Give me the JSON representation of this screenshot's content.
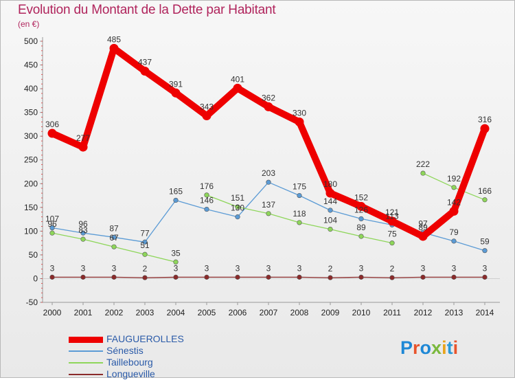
{
  "title": "Evolution du Montant de la Dette par Habitant",
  "unit": "(en €)",
  "logo": {
    "letters": [
      "P",
      "r",
      "o",
      "x",
      "i",
      "t",
      "i"
    ],
    "colors": [
      "#1e88d6",
      "#e8542c",
      "#1e88d6",
      "#7ab83c",
      "#e8a41c",
      "#2a9ad6",
      "#e8542c"
    ]
  },
  "chart_data": {
    "type": "line",
    "title": "Evolution du Montant de la Dette par Habitant",
    "ylabel": "(en €)",
    "x": [
      2000,
      2001,
      2002,
      2003,
      2004,
      2005,
      2006,
      2007,
      2008,
      2009,
      2010,
      2011,
      2012,
      2013,
      2014
    ],
    "ylim": [
      -50,
      500
    ],
    "yticks": [
      -50,
      0,
      50,
      100,
      150,
      200,
      250,
      300,
      350,
      400,
      450,
      500
    ],
    "grid": false,
    "legend_position": "bottom-left",
    "series": [
      {
        "name": "FAUGUEROLLES",
        "color": "#ee0000",
        "width": 10,
        "values": [
          306,
          277,
          485,
          437,
          391,
          343,
          401,
          362,
          330,
          180,
          152,
          121,
          89,
          142,
          316
        ],
        "labels": [
          "306",
          "277",
          "485",
          "437",
          "391",
          "343",
          "401",
          "362",
          "330",
          "180",
          "152",
          "121",
          "89",
          "142",
          "316"
        ]
      },
      {
        "name": "Sénestis",
        "color": "#5b9bd5",
        "width": 1.3,
        "values": [
          107,
          96,
          87,
          77,
          165,
          146,
          130,
          203,
          175,
          144,
          126,
          113,
          97,
          79,
          59
        ],
        "labels": [
          "107",
          "96",
          "87",
          "77",
          "165",
          "146",
          "130",
          "203",
          "175",
          "144",
          "126",
          "113",
          "97",
          "79",
          "59"
        ]
      },
      {
        "name": "Taillebourg",
        "color": "#8ed65a",
        "width": 1.3,
        "values": [
          96,
          83,
          67,
          51,
          35,
          null,
          null,
          null,
          null,
          null,
          null,
          null,
          null,
          null,
          null
        ],
        "labels": [
          "96",
          "83",
          "67",
          "51",
          "35",
          "",
          "",
          "",
          "",
          "",
          "",
          "",
          "",
          "",
          ""
        ]
      },
      {
        "name": "Taillebourg-2",
        "legend": false,
        "color": "#8ed65a",
        "width": 1.3,
        "values": [
          null,
          null,
          null,
          null,
          null,
          176,
          151,
          137,
          118,
          104,
          89,
          75,
          null,
          null,
          null
        ],
        "labels": [
          "",
          "",
          "",
          "",
          "",
          "176",
          "151",
          "137",
          "118",
          "104",
          "89",
          "75",
          "",
          "",
          ""
        ]
      },
      {
        "name": "Taillebourg-3",
        "legend": false,
        "color": "#8ed65a",
        "width": 1.3,
        "values": [
          null,
          null,
          null,
          null,
          null,
          null,
          null,
          null,
          null,
          null,
          null,
          null,
          222,
          192,
          166
        ],
        "labels": [
          "",
          "",
          "",
          "",
          "",
          "",
          "",
          "",
          "",
          "",
          "",
          "",
          "222",
          "192",
          "166"
        ]
      },
      {
        "name": "Longueville",
        "color": "#8b2a2a",
        "width": 1.3,
        "values": [
          3,
          3,
          3,
          2,
          3,
          3,
          3,
          3,
          3,
          2,
          3,
          2,
          3,
          3,
          3
        ],
        "labels": [
          "3",
          "3",
          "3",
          "2",
          "3",
          "3",
          "3",
          "3",
          "3",
          "2",
          "3",
          "2",
          "3",
          "3",
          "3"
        ]
      }
    ],
    "legend": [
      {
        "label": "FAUGUEROLLES",
        "color": "#ee0000",
        "thick": true
      },
      {
        "label": "Sénestis",
        "color": "#5b9bd5",
        "thick": false
      },
      {
        "label": "Taillebourg",
        "color": "#8ed65a",
        "thick": false
      },
      {
        "label": "Longueville",
        "color": "#8b2a2a",
        "thick": false
      }
    ]
  }
}
